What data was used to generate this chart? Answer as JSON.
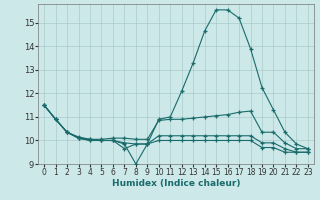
{
  "xlabel": "Humidex (Indice chaleur)",
  "bg_color": "#cce8e8",
  "line_color": "#1a6b6b",
  "grid_color": "#aacaca",
  "xlim": [
    -0.5,
    23.5
  ],
  "ylim": [
    9,
    15.8
  ],
  "yticks": [
    9,
    10,
    11,
    12,
    13,
    14,
    15
  ],
  "xticks": [
    0,
    1,
    2,
    3,
    4,
    5,
    6,
    7,
    8,
    9,
    10,
    11,
    12,
    13,
    14,
    15,
    16,
    17,
    18,
    19,
    20,
    21,
    22,
    23
  ],
  "lines": [
    {
      "x": [
        0,
        1,
        2,
        3,
        4,
        5,
        6,
        7,
        8,
        9,
        10,
        11,
        12,
        13,
        14,
        15,
        16,
        17,
        18,
        19,
        20,
        21,
        22,
        23
      ],
      "y": [
        11.5,
        10.9,
        10.35,
        10.1,
        10.05,
        10.0,
        10.0,
        9.85,
        9.0,
        9.85,
        10.9,
        11.0,
        12.1,
        13.3,
        14.65,
        15.55,
        15.55,
        15.2,
        13.9,
        12.25,
        11.3,
        10.35,
        9.85,
        9.65
      ]
    },
    {
      "x": [
        0,
        1,
        2,
        3,
        4,
        5,
        6,
        7,
        8,
        9,
        10,
        11,
        12,
        13,
        14,
        15,
        16,
        17,
        18,
        19,
        20,
        21,
        22,
        23
      ],
      "y": [
        11.5,
        10.9,
        10.35,
        10.15,
        10.05,
        10.05,
        10.1,
        10.1,
        10.05,
        10.05,
        10.85,
        10.9,
        10.9,
        10.95,
        11.0,
        11.05,
        11.1,
        11.2,
        11.25,
        10.35,
        10.35,
        9.9,
        9.65,
        9.65
      ]
    },
    {
      "x": [
        0,
        1,
        2,
        3,
        4,
        5,
        6,
        7,
        8,
        9,
        10,
        11,
        12,
        13,
        14,
        15,
        16,
        17,
        18,
        19,
        20,
        21,
        22,
        23
      ],
      "y": [
        11.5,
        10.9,
        10.35,
        10.1,
        10.0,
        10.0,
        10.0,
        9.9,
        9.85,
        9.85,
        10.2,
        10.2,
        10.2,
        10.2,
        10.2,
        10.2,
        10.2,
        10.2,
        10.2,
        9.9,
        9.9,
        9.65,
        9.5,
        9.5
      ]
    },
    {
      "x": [
        0,
        1,
        2,
        3,
        4,
        5,
        6,
        7,
        8,
        9,
        10,
        11,
        12,
        13,
        14,
        15,
        16,
        17,
        18,
        19,
        20,
        21,
        22,
        23
      ],
      "y": [
        11.5,
        10.9,
        10.35,
        10.1,
        10.0,
        10.0,
        10.0,
        9.65,
        9.85,
        9.85,
        10.0,
        10.0,
        10.0,
        10.0,
        10.0,
        10.0,
        10.0,
        10.0,
        10.0,
        9.7,
        9.7,
        9.5,
        9.5,
        9.5
      ]
    }
  ]
}
